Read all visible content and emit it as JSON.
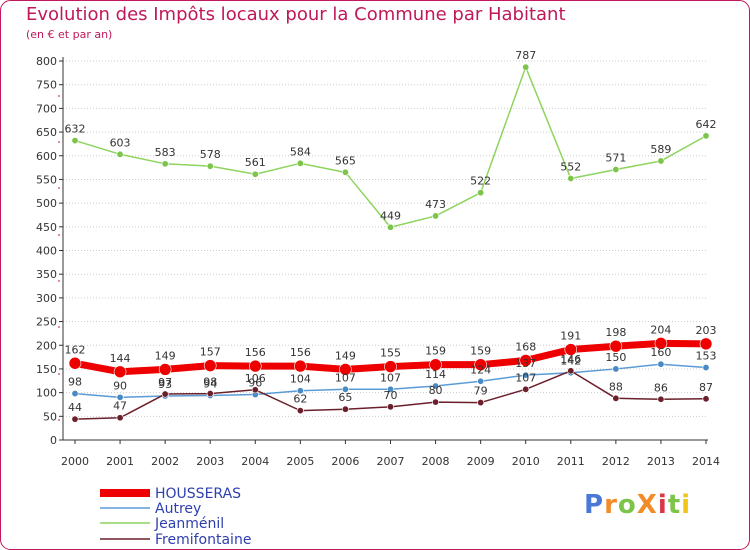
{
  "title": "Evolution des Impôts locaux pour la Commune par Habitant",
  "subtitle": "(en € et par an)",
  "logo_text": "ProXiti",
  "colors": {
    "frame": "#c0185a",
    "grid": "#cccccc",
    "axis": "#333333"
  },
  "chart_data": {
    "type": "line",
    "title": "Evolution des Impôts locaux pour la Commune par Habitant",
    "subtitle": "(en € et par an)",
    "xlabel": "",
    "ylabel": "",
    "ylim": [
      0,
      800
    ],
    "yticks": [
      0,
      50,
      100,
      150,
      200,
      250,
      300,
      350,
      400,
      450,
      500,
      550,
      600,
      650,
      700,
      750,
      800
    ],
    "grid": true,
    "legend": "bottom-left",
    "categories": [
      "2000",
      "2001",
      "2002",
      "2003",
      "2004",
      "2005",
      "2006",
      "2007",
      "2008",
      "2009",
      "2010",
      "2011",
      "2012",
      "2013",
      "2014"
    ],
    "series": [
      {
        "name": "Jeanménil",
        "color": "#8ed45e",
        "marker": "#7cc44a",
        "values": [
          632,
          603,
          583,
          578,
          561,
          584,
          565,
          449,
          473,
          522,
          787,
          552,
          571,
          589,
          642
        ]
      },
      {
        "name": "Autrey",
        "color": "#5b9bd5",
        "marker": "#4a8ac4",
        "values": [
          98,
          90,
          93,
          94,
          96,
          104,
          107,
          107,
          114,
          124,
          137,
          142,
          150,
          160,
          153
        ]
      },
      {
        "name": "Fremifontaine",
        "color": "#6b1f2a",
        "marker": "#6b1f2a",
        "values": [
          44,
          47,
          97,
          98,
          106,
          62,
          65,
          70,
          80,
          79,
          107,
          146,
          88,
          86,
          87
        ]
      },
      {
        "name": "HOUSSERAS",
        "color": "#ee0000",
        "marker": "#ee0000",
        "values": [
          162,
          144,
          149,
          157,
          156,
          156,
          149,
          155,
          159,
          159,
          168,
          191,
          198,
          204,
          203
        ]
      }
    ],
    "legend_order": [
      "HOUSSERAS",
      "Autrey",
      "Jeanménil",
      "Fremifontaine"
    ]
  }
}
